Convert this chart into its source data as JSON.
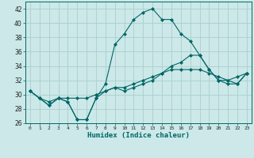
{
  "xlabel": "Humidex (Indice chaleur)",
  "x": [
    0,
    1,
    2,
    3,
    4,
    5,
    6,
    7,
    8,
    9,
    10,
    11,
    12,
    13,
    14,
    15,
    16,
    17,
    18,
    19,
    20,
    21,
    22,
    23
  ],
  "line1": [
    30.5,
    29.5,
    28.5,
    29.5,
    29.0,
    26.5,
    26.5,
    29.5,
    31.5,
    37.0,
    38.5,
    40.5,
    41.5,
    42.0,
    40.5,
    40.5,
    38.5,
    37.5,
    35.5,
    33.5,
    32.0,
    32.0,
    31.5,
    33.0
  ],
  "line2": [
    30.5,
    29.5,
    28.5,
    29.5,
    29.0,
    26.5,
    26.5,
    29.5,
    30.5,
    31.0,
    30.5,
    31.0,
    31.5,
    32.0,
    33.0,
    34.0,
    34.5,
    35.5,
    35.5,
    33.5,
    32.0,
    31.5,
    31.5,
    33.0
  ],
  "line3": [
    30.5,
    29.5,
    29.0,
    29.5,
    29.5,
    29.5,
    29.5,
    30.0,
    30.5,
    31.0,
    31.0,
    31.5,
    32.0,
    32.5,
    33.0,
    33.5,
    33.5,
    33.5,
    33.5,
    33.0,
    32.5,
    32.0,
    32.5,
    33.0
  ],
  "line_color": "#006666",
  "bg_color": "#cce8e8",
  "grid_color": "#aacece",
  "ylim": [
    26,
    43
  ],
  "yticks": [
    26,
    28,
    30,
    32,
    34,
    36,
    38,
    40,
    42
  ],
  "xlim": [
    -0.5,
    23.5
  ],
  "xticks": [
    0,
    1,
    2,
    3,
    4,
    5,
    6,
    7,
    8,
    9,
    10,
    11,
    12,
    13,
    14,
    15,
    16,
    17,
    18,
    19,
    20,
    21,
    22,
    23
  ],
  "xtick_labels": [
    "0",
    "1",
    "2",
    "3",
    "4",
    "5",
    "6",
    "7",
    "8",
    "9",
    "10",
    "11",
    "12",
    "13",
    "14",
    "15",
    "16",
    "17",
    "18",
    "19",
    "20",
    "21",
    "22",
    "23"
  ]
}
